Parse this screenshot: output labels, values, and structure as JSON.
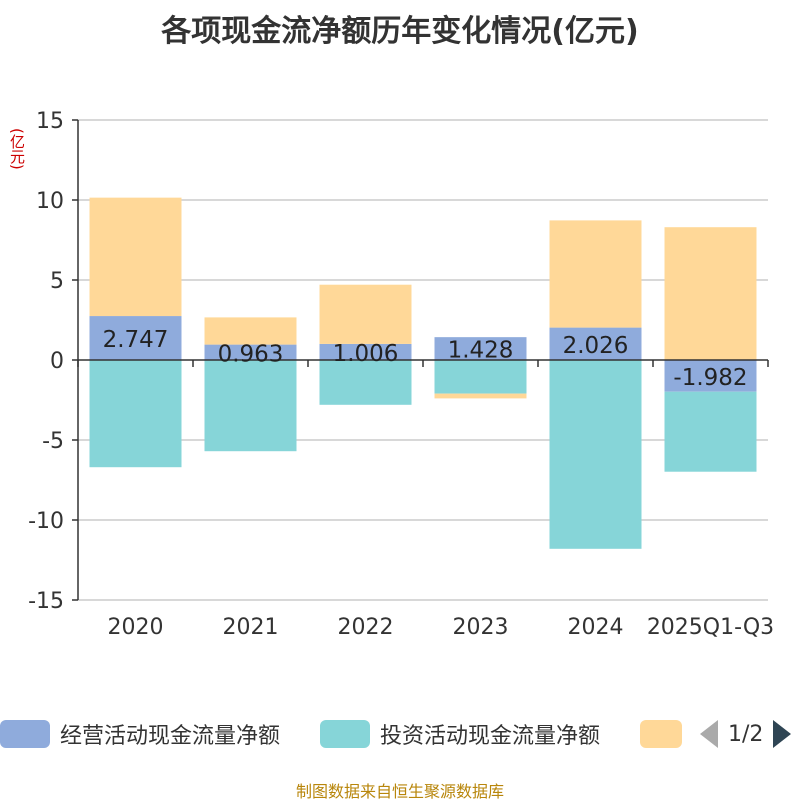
{
  "title": "各项现金流净额历年变化情况(亿元)",
  "unit": "(亿元)",
  "chart_data": {
    "type": "bar",
    "stacked": true,
    "categories": [
      "2020",
      "2021",
      "2022",
      "2023",
      "2024",
      "2025Q1-Q3"
    ],
    "ylim": [
      -15,
      15
    ],
    "yticks": [
      15,
      10,
      5,
      0,
      -5,
      -10,
      -15
    ],
    "ytick_labels": [
      "15",
      "10",
      "5",
      "0",
      "-5",
      "-10",
      "-15"
    ],
    "grid": true,
    "series": [
      {
        "name": "经营活动现金流量净额",
        "color": "#8fabdc",
        "values": [
          2.747,
          0.963,
          1.006,
          1.428,
          2.026,
          -1.982
        ],
        "labels": [
          "2.747",
          "0.963",
          "1.006",
          "1.428",
          "2.026",
          "-1.982"
        ]
      },
      {
        "name": "投资活动现金流量净额",
        "color": "#86d5d8",
        "values": [
          -6.7,
          -5.7,
          -2.8,
          -2.1,
          -11.8,
          -5.0
        ]
      },
      {
        "name": "",
        "color": "#ffd898",
        "values": [
          7.4,
          1.7,
          3.7,
          -0.3,
          6.7,
          8.3
        ]
      }
    ]
  },
  "legend": {
    "items": [
      {
        "label": "经营活动现金流量净额",
        "color": "#8fabdc"
      },
      {
        "label": "投资活动现金流量净额",
        "color": "#86d5d8"
      },
      {
        "label": "",
        "color": "#ffd898"
      }
    ],
    "page": "1/2"
  },
  "source": "制图数据来自恒生聚源数据库"
}
